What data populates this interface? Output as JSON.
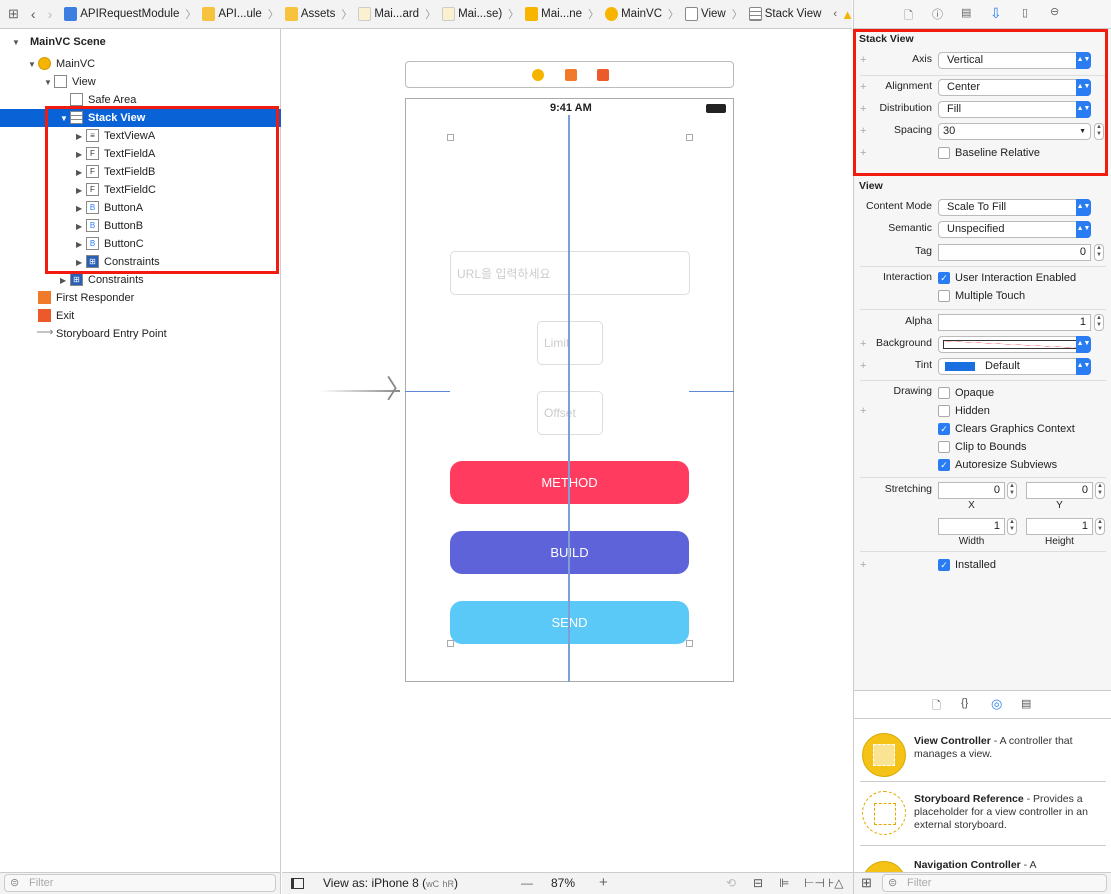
{
  "breadcrumb": [
    "APIRequestModule",
    "API...ule",
    "Assets",
    "Mai...ard",
    "Mai...se)",
    "Mai...ne",
    "MainVC",
    "View",
    "Stack View"
  ],
  "outline": {
    "items": [
      {
        "label": "MainVC Scene",
        "icon": "scene-icon"
      },
      {
        "label": "MainVC",
        "icon": "view-controller-icon"
      },
      {
        "label": "View",
        "icon": "view-icon"
      },
      {
        "label": "Safe Area",
        "icon": "safe-area-icon"
      },
      {
        "label": "Stack View",
        "icon": "stack-view-icon"
      },
      {
        "label": "TextViewA",
        "icon": "text-view-icon",
        "glyph": "≡"
      },
      {
        "label": "TextFieldA",
        "icon": "text-field-icon",
        "glyph": "F"
      },
      {
        "label": "TextFieldB",
        "icon": "text-field-icon",
        "glyph": "F"
      },
      {
        "label": "TextFieldC",
        "icon": "text-field-icon",
        "glyph": "F"
      },
      {
        "label": "ButtonA",
        "icon": "button-icon",
        "glyph": "B"
      },
      {
        "label": "ButtonB",
        "icon": "button-icon",
        "glyph": "B"
      },
      {
        "label": "ButtonC",
        "icon": "button-icon",
        "glyph": "B"
      },
      {
        "label": "Constraints",
        "icon": "constraints-icon",
        "glyph": "⊞"
      },
      {
        "label": "Constraints",
        "icon": "constraints-icon",
        "glyph": "⊞"
      },
      {
        "label": "First Responder",
        "icon": "first-responder-icon"
      },
      {
        "label": "Exit",
        "icon": "exit-icon"
      },
      {
        "label": "Storyboard Entry Point",
        "icon": "arrow-icon"
      }
    ],
    "filter_placeholder": "Filter"
  },
  "canvas": {
    "status_time": "9:41 AM",
    "url_placeholder": "URL을 입력하세요",
    "limit_placeholder": "Limit",
    "offset_placeholder": "Offset",
    "buttons": [
      {
        "label": "METHOD",
        "color": "#FF3B5F"
      },
      {
        "label": "BUILD",
        "color": "#5E63D9"
      },
      {
        "label": "SEND",
        "color": "#5BC9F8"
      }
    ],
    "view_as": "View as: iPhone 8 (",
    "size_w": "wC",
    "size_h": "hR",
    "view_as_end": ")",
    "zoom": "87%",
    "zoom_minus": "—",
    "zoom_plus": "+"
  },
  "inspector": {
    "stack_title": "Stack View",
    "axis_label": "Axis",
    "axis": "Vertical",
    "alignment_label": "Alignment",
    "alignment": "Center",
    "distribution_label": "Distribution",
    "distribution": "Fill",
    "spacing_label": "Spacing",
    "spacing": "30",
    "baseline": "Baseline Relative",
    "view_title": "View",
    "content_mode_label": "Content Mode",
    "content_mode": "Scale To Fill",
    "semantic_label": "Semantic",
    "semantic": "Unspecified",
    "tag_label": "Tag",
    "tag": "0",
    "interaction_label": "Interaction",
    "user_interaction": "User Interaction Enabled",
    "multiple_touch": "Multiple Touch",
    "alpha_label": "Alpha",
    "alpha": "1",
    "background_label": "Background",
    "tint_label": "Tint",
    "tint": "Default",
    "tint_color": "#1a6fe0",
    "drawing_label": "Drawing",
    "opaque": "Opaque",
    "hidden": "Hidden",
    "clears": "Clears Graphics Context",
    "clip": "Clip to Bounds",
    "autoresize": "Autoresize Subviews",
    "stretching_label": "Stretching",
    "x": "0",
    "y": "0",
    "width": "1",
    "height": "1",
    "x_label": "X",
    "y_label": "Y",
    "width_label": "Width",
    "height_label": "Height",
    "installed": "Installed"
  },
  "library": {
    "items": [
      {
        "title": "View Controller",
        "desc": " - A controller that manages a view."
      },
      {
        "title": "Storyboard Reference",
        "desc": " - Provides a placeholder for a view controller in an external storyboard."
      },
      {
        "title": "Navigation Controller",
        "desc": " - A"
      }
    ],
    "filter_placeholder": "Filter"
  }
}
